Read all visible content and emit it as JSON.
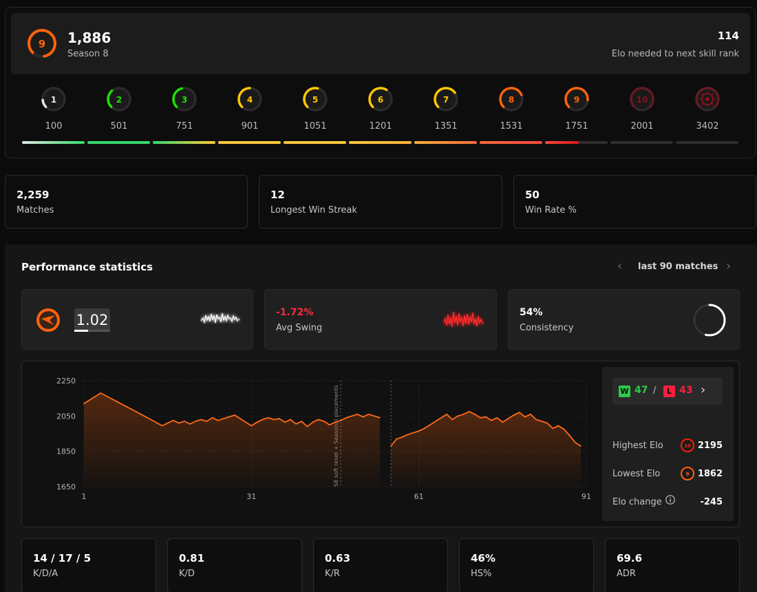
{
  "header": {
    "current_elo": "1,886",
    "season": "Season 8",
    "current_level": "9",
    "elo_to_next": "114",
    "elo_to_next_label": "Elo needed to next skill rank"
  },
  "levels": [
    {
      "level": "1",
      "elo": "100",
      "color": "#e8e8e8",
      "fill": 0.15
    },
    {
      "level": "2",
      "elo": "501",
      "color": "#1ce400",
      "fill": 0.35
    },
    {
      "level": "3",
      "elo": "751",
      "color": "#1ce400",
      "fill": 0.45
    },
    {
      "level": "4",
      "elo": "901",
      "color": "#ffc800",
      "fill": 0.5
    },
    {
      "level": "5",
      "elo": "1051",
      "color": "#ffc800",
      "fill": 0.55
    },
    {
      "level": "6",
      "elo": "1201",
      "color": "#ffc800",
      "fill": 0.62
    },
    {
      "level": "7",
      "elo": "1351",
      "color": "#ffc800",
      "fill": 0.7
    },
    {
      "level": "8",
      "elo": "1531",
      "color": "#ff6309",
      "fill": 0.75
    },
    {
      "level": "9",
      "elo": "1751",
      "color": "#ff6309",
      "fill": 0.85
    },
    {
      "level": "10",
      "elo": "2001",
      "color": "#8a0f1a",
      "fill": 1.0
    },
    {
      "level": "",
      "elo": "3402",
      "color": "#8a0f1a",
      "fill": 1.0
    }
  ],
  "progress_segments": [
    {
      "from": "#dfe8e4",
      "to": "#37d96a",
      "fill": 1
    },
    {
      "from": "#37d96a",
      "to": "#37d96a",
      "fill": 1
    },
    {
      "from": "#37d96a",
      "to": "#ffc93c",
      "fill": 1
    },
    {
      "from": "#ffc93c",
      "to": "#ffc93c",
      "fill": 1
    },
    {
      "from": "#ffc93c",
      "to": "#ffc93c",
      "fill": 1
    },
    {
      "from": "#ffc93c",
      "to": "#ffb23c",
      "fill": 1
    },
    {
      "from": "#ffb23c",
      "to": "#ff6a3c",
      "fill": 1
    },
    {
      "from": "#ff6a3c",
      "to": "#ff4a3c",
      "fill": 1
    },
    {
      "from": "#ff4a3c",
      "to": "#d51a1a",
      "fill": 0.54
    },
    {
      "from": "#2e2e2e",
      "to": "#2e2e2e",
      "fill": 0
    },
    {
      "from": "#2e2e2e",
      "to": "#2e2e2e",
      "fill": 0
    }
  ],
  "stats": [
    {
      "value": "2,259",
      "label": "Matches"
    },
    {
      "value": "12",
      "label": "Longest Win Streak"
    },
    {
      "value": "50",
      "label": "Win Rate %"
    }
  ],
  "performance": {
    "title": "Performance statistics",
    "range": "last 90 matches",
    "kd_value": "1.02",
    "avg_swing_value": "-1.72%",
    "avg_swing_label": "Avg Swing",
    "consistency_value": "54%",
    "consistency_label": "Consistency",
    "consistency_fill": 0.54
  },
  "side": {
    "wins": "47",
    "losses": "43",
    "w_badge": "W",
    "l_badge": "L",
    "slash": "/",
    "highest_label": "Highest Elo",
    "highest_value": "2195",
    "highest_level": "10",
    "lowest_label": "Lowest Elo",
    "lowest_value": "1862",
    "lowest_level": "9",
    "change_label": "Elo change",
    "change_value": "-245"
  },
  "bottom_stats": [
    {
      "value": "14 / 17 / 5",
      "label": "K/D/A"
    },
    {
      "value": "0.81",
      "label": "K/D"
    },
    {
      "value": "0.63",
      "label": "K/R"
    },
    {
      "value": "46%",
      "label": "HS%"
    },
    {
      "value": "69.6",
      "label": "ADR"
    }
  ],
  "colors": {
    "accent": "#ff6309",
    "win": "#2fc94a",
    "loss": "#ff1f3d"
  },
  "chart_data": {
    "type": "area",
    "xlabel": "",
    "ylabel": "",
    "ylim": [
      1650,
      2250
    ],
    "xlim": [
      1,
      91
    ],
    "yticks": [
      2250,
      2050,
      1850,
      1650
    ],
    "xticks": [
      1,
      31,
      61,
      91
    ],
    "annotation": "S8 soft reset + Seasonal placements",
    "marker_x": [
      47,
      56
    ],
    "segments": [
      {
        "x": [
          1,
          4,
          7,
          10,
          13,
          15,
          16,
          17,
          18,
          19,
          20,
          21,
          22,
          23,
          24,
          25,
          26,
          27,
          28,
          29,
          31,
          32,
          33,
          34,
          35,
          36,
          37,
          38,
          39,
          40,
          41,
          42,
          43,
          44,
          45,
          46,
          47,
          48,
          49,
          50,
          51,
          52,
          53,
          54
        ],
        "y": [
          2120,
          2180,
          2130,
          2080,
          2030,
          1995,
          2010,
          2025,
          2010,
          2020,
          2005,
          2020,
          2030,
          2020,
          2040,
          2025,
          2035,
          2045,
          2055,
          2035,
          1995,
          2015,
          2030,
          2040,
          2030,
          2035,
          2015,
          2030,
          2005,
          2020,
          1990,
          2015,
          2030,
          2020,
          2000,
          2015,
          2025,
          2040,
          2050,
          2060,
          2045,
          2060,
          2050,
          2040
        ]
      },
      {
        "x": [
          56,
          57,
          58,
          59,
          60,
          61,
          62,
          63,
          64,
          65,
          66,
          67,
          68,
          69,
          70,
          71,
          72,
          73,
          74,
          75,
          76,
          77,
          78,
          79,
          80,
          81,
          82,
          83,
          84,
          85,
          86,
          87,
          88,
          89,
          90
        ],
        "y": [
          1880,
          1920,
          1930,
          1945,
          1955,
          1965,
          1980,
          2000,
          2020,
          2040,
          2060,
          2030,
          2050,
          2060,
          2075,
          2060,
          2040,
          2045,
          2025,
          2040,
          2015,
          2035,
          2055,
          2070,
          2045,
          2060,
          2030,
          2020,
          2010,
          1980,
          1995,
          1975,
          1940,
          1900,
          1880
        ]
      }
    ]
  }
}
